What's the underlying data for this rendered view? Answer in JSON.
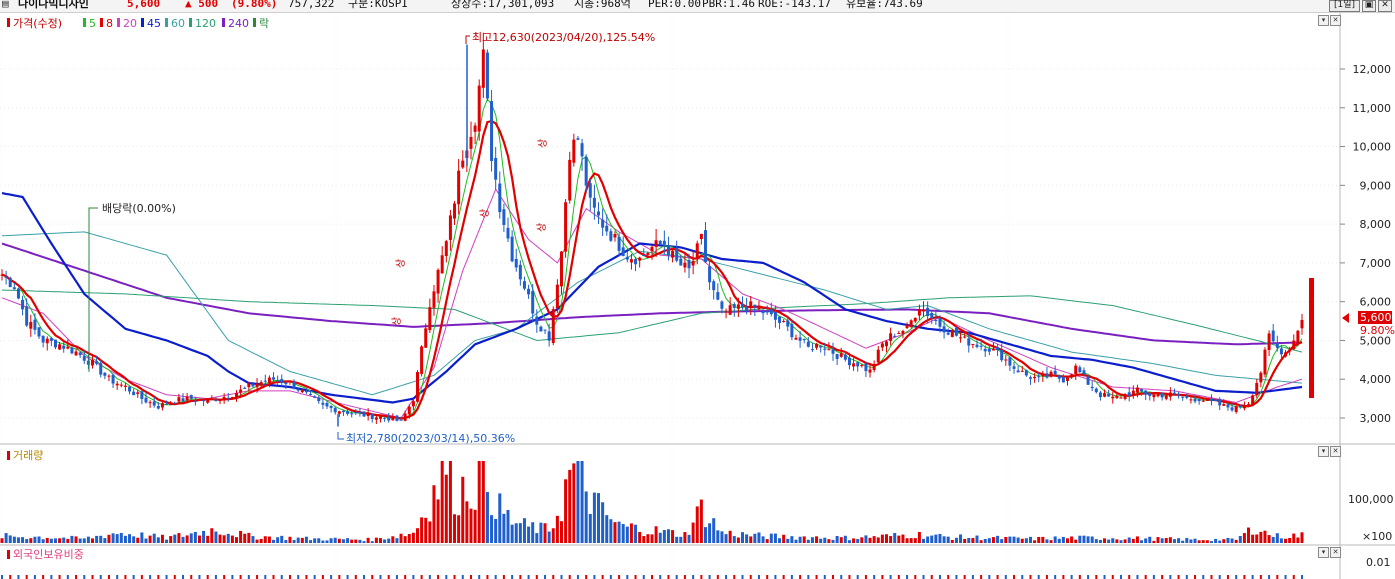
{
  "header": {
    "stock_name": "나이나믹디자인",
    "price": "5,600",
    "change": "▲ 500",
    "change_rate": "(9.80%)",
    "volume": "757,322",
    "market": "구분:KOSPI",
    "shares": "상장수:17,301,093",
    "market_cap": "시총:968억",
    "per": "PER:0.00",
    "pbr": "PBR:1.46",
    "roe": "ROE:-143.17",
    "float_rate": "유보율:743.69",
    "period": "[1일]"
  },
  "colors": {
    "up": "#e00000",
    "down": "#1f5fcc",
    "ma5": "#22bb22",
    "ma8": "#e00000",
    "ma20": "#d040c0",
    "ma45": "#0a1ecc",
    "ma60": "#3aa0a8",
    "ma120": "#2aa070",
    "ma240": "#7a20c0"
  },
  "price_legend": {
    "price_label": "가격(수정)",
    "ma5": "5",
    "ma8": "8",
    "ma20": "20",
    "ma45": "45",
    "ma60": "60",
    "ma120": "120",
    "ma240": "240",
    "ex": "락"
  },
  "volume_legend": {
    "label": "거래량"
  },
  "foreign_legend": {
    "label": "외국인보유비중"
  },
  "annotations": {
    "high": "최고12,630(2023/04/20),125.54%",
    "low": "최저2,780(2023/03/14),50.36%",
    "dividend": "배당락(0.00%)",
    "rise_marker": "상"
  },
  "price_tag": {
    "price": "5,600",
    "rate": "9.80%"
  },
  "volume_axis": {
    "tick": "100,000",
    "unit": "×100"
  },
  "foreign_axis": {
    "tick": "0.01"
  },
  "chart_data": {
    "type": "candlestick",
    "y_ticks": [
      "3,000",
      "4,000",
      "5,000",
      "6,000",
      "7,000",
      "8,000",
      "9,000",
      "10,000",
      "11,000",
      "12,000"
    ],
    "ylim": [
      2500,
      13200
    ],
    "high": 12630,
    "low": 2780,
    "last_close": 5600,
    "price_keypoints": [
      [
        0,
        6700
      ],
      [
        3,
        6400
      ],
      [
        6,
        5500
      ],
      [
        10,
        5000
      ],
      [
        14,
        4900
      ],
      [
        18,
        4700
      ],
      [
        22,
        4400
      ],
      [
        26,
        4000
      ],
      [
        30,
        3800
      ],
      [
        34,
        3500
      ],
      [
        38,
        3300
      ],
      [
        42,
        3450
      ],
      [
        46,
        3500
      ],
      [
        50,
        3450
      ],
      [
        54,
        3550
      ],
      [
        58,
        3700
      ],
      [
        62,
        3900
      ],
      [
        66,
        4000
      ],
      [
        70,
        3900
      ],
      [
        74,
        3600
      ],
      [
        78,
        3300
      ],
      [
        82,
        3200
      ],
      [
        86,
        3100
      ],
      [
        90,
        3050
      ],
      [
        94,
        3000
      ],
      [
        97,
        2900
      ],
      [
        100,
        3500
      ],
      [
        104,
        6000
      ],
      [
        108,
        7500
      ],
      [
        112,
        9800
      ],
      [
        115,
        10800
      ],
      [
        117,
        12300
      ],
      [
        119,
        9800
      ],
      [
        121,
        8500
      ],
      [
        124,
        7200
      ],
      [
        127,
        6400
      ],
      [
        130,
        5500
      ],
      [
        133,
        5100
      ],
      [
        136,
        7300
      ],
      [
        138,
        9900
      ],
      [
        140,
        10200
      ],
      [
        143,
        8500
      ],
      [
        146,
        8000
      ],
      [
        149,
        7600
      ],
      [
        152,
        7200
      ],
      [
        155,
        7100
      ],
      [
        158,
        7400
      ],
      [
        161,
        7500
      ],
      [
        164,
        7000
      ],
      [
        167,
        6800
      ],
      [
        170,
        7600
      ],
      [
        172,
        6500
      ],
      [
        175,
        5700
      ],
      [
        178,
        5800
      ],
      [
        181,
        5900
      ],
      [
        184,
        5800
      ],
      [
        187,
        5600
      ],
      [
        190,
        5400
      ],
      [
        193,
        5100
      ],
      [
        196,
        4800
      ],
      [
        199,
        4900
      ],
      [
        202,
        4700
      ],
      [
        205,
        4500
      ],
      [
        208,
        4400
      ],
      [
        211,
        4200
      ],
      [
        214,
        4900
      ],
      [
        217,
        5200
      ],
      [
        220,
        5300
      ],
      [
        223,
        5900
      ],
      [
        225,
        5700
      ],
      [
        228,
        5400
      ],
      [
        231,
        5200
      ],
      [
        234,
        5000
      ],
      [
        237,
        4900
      ],
      [
        240,
        4800
      ],
      [
        243,
        4600
      ],
      [
        246,
        4300
      ],
      [
        249,
        4100
      ],
      [
        252,
        4000
      ],
      [
        255,
        4100
      ],
      [
        258,
        4000
      ],
      [
        261,
        4300
      ],
      [
        264,
        3900
      ],
      [
        267,
        3600
      ],
      [
        270,
        3500
      ],
      [
        273,
        3600
      ],
      [
        276,
        3700
      ],
      [
        279,
        3600
      ],
      [
        282,
        3600
      ],
      [
        285,
        3600
      ],
      [
        288,
        3500
      ],
      [
        291,
        3500
      ],
      [
        294,
        3400
      ],
      [
        297,
        3300
      ],
      [
        300,
        3250
      ],
      [
        303,
        3400
      ],
      [
        306,
        4200
      ],
      [
        308,
        5100
      ],
      [
        310,
        4800
      ],
      [
        312,
        4700
      ],
      [
        314,
        5000
      ],
      [
        316,
        5600
      ]
    ],
    "ma_keypoints": {
      "ma45": [
        [
          0,
          8800
        ],
        [
          5,
          8700
        ],
        [
          12,
          7500
        ],
        [
          20,
          6200
        ],
        [
          30,
          5300
        ],
        [
          40,
          5000
        ],
        [
          50,
          4600
        ],
        [
          55,
          4200
        ],
        [
          60,
          3900
        ],
        [
          70,
          3800
        ],
        [
          80,
          3600
        ],
        [
          95,
          3400
        ],
        [
          100,
          3500
        ],
        [
          108,
          4200
        ],
        [
          115,
          4900
        ],
        [
          125,
          5300
        ],
        [
          135,
          5800
        ],
        [
          145,
          6900
        ],
        [
          155,
          7500
        ],
        [
          165,
          7400
        ],
        [
          175,
          7100
        ],
        [
          185,
          7000
        ],
        [
          195,
          6500
        ],
        [
          205,
          5800
        ],
        [
          215,
          5500
        ],
        [
          225,
          5300
        ],
        [
          235,
          5200
        ],
        [
          245,
          4900
        ],
        [
          255,
          4600
        ],
        [
          265,
          4500
        ],
        [
          275,
          4300
        ],
        [
          285,
          4000
        ],
        [
          295,
          3700
        ],
        [
          305,
          3650
        ],
        [
          316,
          3800
        ]
      ],
      "ma240": [
        [
          0,
          7500
        ],
        [
          20,
          6800
        ],
        [
          40,
          6100
        ],
        [
          60,
          5700
        ],
        [
          80,
          5500
        ],
        [
          100,
          5350
        ],
        [
          120,
          5450
        ],
        [
          140,
          5600
        ],
        [
          160,
          5700
        ],
        [
          180,
          5750
        ],
        [
          200,
          5780
        ],
        [
          220,
          5800
        ],
        [
          240,
          5700
        ],
        [
          260,
          5300
        ],
        [
          280,
          5000
        ],
        [
          300,
          4900
        ],
        [
          316,
          4950
        ]
      ],
      "ma120": [
        [
          0,
          6300
        ],
        [
          30,
          6200
        ],
        [
          60,
          6000
        ],
        [
          90,
          5900
        ],
        [
          110,
          5800
        ],
        [
          130,
          5000
        ],
        [
          150,
          5200
        ],
        [
          170,
          5700
        ],
        [
          190,
          5850
        ],
        [
          210,
          5950
        ],
        [
          230,
          6100
        ],
        [
          250,
          6150
        ],
        [
          270,
          5900
        ],
        [
          290,
          5400
        ],
        [
          305,
          5000
        ],
        [
          316,
          4700
        ]
      ],
      "ma60": [
        [
          0,
          7700
        ],
        [
          20,
          7800
        ],
        [
          40,
          7200
        ],
        [
          55,
          5000
        ],
        [
          70,
          4200
        ],
        [
          90,
          3600
        ],
        [
          105,
          4100
        ],
        [
          115,
          5000
        ],
        [
          125,
          5300
        ],
        [
          140,
          6500
        ],
        [
          155,
          7300
        ],
        [
          170,
          7100
        ],
        [
          185,
          6700
        ],
        [
          200,
          6300
        ],
        [
          215,
          5800
        ],
        [
          225,
          5900
        ],
        [
          240,
          5300
        ],
        [
          260,
          4700
        ],
        [
          280,
          4400
        ],
        [
          295,
          4100
        ],
        [
          316,
          3900
        ]
      ],
      "ma20": [
        [
          0,
          6100
        ],
        [
          10,
          5700
        ],
        [
          20,
          4600
        ],
        [
          30,
          4000
        ],
        [
          40,
          3600
        ],
        [
          50,
          3500
        ],
        [
          60,
          3700
        ],
        [
          70,
          3700
        ],
        [
          85,
          3300
        ],
        [
          97,
          3000
        ],
        [
          105,
          4300
        ],
        [
          112,
          6800
        ],
        [
          120,
          8900
        ],
        [
          128,
          7600
        ],
        [
          135,
          7000
        ],
        [
          142,
          8400
        ],
        [
          150,
          7800
        ],
        [
          160,
          7200
        ],
        [
          170,
          7100
        ],
        [
          180,
          6200
        ],
        [
          190,
          5800
        ],
        [
          200,
          5300
        ],
        [
          210,
          4800
        ],
        [
          220,
          5200
        ],
        [
          228,
          5600
        ],
        [
          240,
          5000
        ],
        [
          255,
          4300
        ],
        [
          270,
          3800
        ],
        [
          285,
          3700
        ],
        [
          300,
          3400
        ],
        [
          310,
          3800
        ],
        [
          316,
          4000
        ]
      ]
    },
    "volume_keypoints": [
      [
        0,
        8
      ],
      [
        10,
        7
      ],
      [
        20,
        5
      ],
      [
        28,
        12
      ],
      [
        40,
        6
      ],
      [
        52,
        16
      ],
      [
        60,
        8
      ],
      [
        75,
        5
      ],
      [
        90,
        4
      ],
      [
        100,
        12
      ],
      [
        104,
        50
      ],
      [
        106,
        70
      ],
      [
        108,
        95
      ],
      [
        110,
        60
      ],
      [
        113,
        65
      ],
      [
        115,
        70
      ],
      [
        117,
        85
      ],
      [
        119,
        60
      ],
      [
        121,
        40
      ],
      [
        124,
        25
      ],
      [
        127,
        20
      ],
      [
        133,
        15
      ],
      [
        136,
        45
      ],
      [
        138,
        80
      ],
      [
        140,
        90
      ],
      [
        143,
        55
      ],
      [
        146,
        35
      ],
      [
        150,
        20
      ],
      [
        158,
        15
      ],
      [
        166,
        10
      ],
      [
        170,
        40
      ],
      [
        175,
        12
      ],
      [
        185,
        8
      ],
      [
        195,
        7
      ],
      [
        205,
        6
      ],
      [
        215,
        8
      ],
      [
        222,
        10
      ],
      [
        230,
        7
      ],
      [
        240,
        6
      ],
      [
        250,
        5
      ],
      [
        260,
        6
      ],
      [
        270,
        6
      ],
      [
        280,
        5
      ],
      [
        290,
        4
      ],
      [
        300,
        4
      ],
      [
        305,
        20
      ],
      [
        307,
        12
      ],
      [
        310,
        8
      ],
      [
        316,
        9
      ]
    ]
  }
}
